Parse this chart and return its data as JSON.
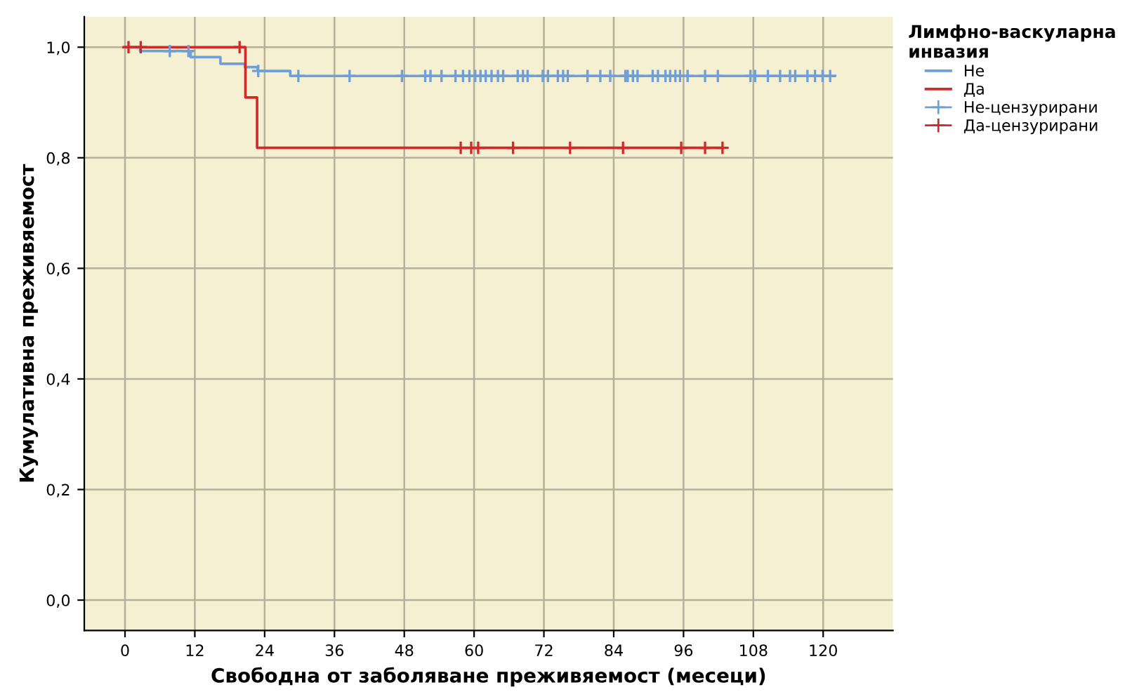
{
  "chart_data": {
    "type": "step",
    "xlabel": "Свободна от заболяване преживяемост (месеци)",
    "ylabel": "Кумулативна преживяемост",
    "legend_title": "Лимфно-васкуларна инвазия",
    "legend": "right",
    "grid": true,
    "xlim": [
      -7,
      132
    ],
    "ylim": [
      -0.055,
      1.055
    ],
    "xticks": [
      0,
      12,
      24,
      36,
      48,
      60,
      72,
      84,
      96,
      108,
      120
    ],
    "yticks": [
      {
        "value": 0,
        "label": "0,0"
      },
      {
        "value": 0.2,
        "label": "0,2"
      },
      {
        "value": 0.4,
        "label": "0,4"
      },
      {
        "value": 0.6,
        "label": "0,6"
      },
      {
        "value": 0.8,
        "label": "0,8"
      },
      {
        "value": 1.0,
        "label": "1,0"
      }
    ],
    "series": [
      {
        "name": "Не",
        "color": "#6f9fd8",
        "x": [
          0,
          2.6,
          11.3,
          16.4,
          20.6,
          22.8,
          28.4,
          122
        ],
        "values": [
          1,
          0.993,
          0.982,
          0.97,
          0.964,
          0.957,
          0.948,
          0.948
        ]
      },
      {
        "name": "Да",
        "color": "#d02a2a",
        "x": [
          0,
          20.7,
          22.7,
          102.7
        ],
        "values": [
          1,
          0.909,
          0.818,
          0.818
        ]
      },
      {
        "name": "Не-цензурирани",
        "type": "scatter",
        "marker": "cross",
        "color": "#6f9fd8",
        "x": [
          7.7,
          10.9,
          22.9,
          29.8,
          38.6,
          47.6,
          51.6,
          52.5,
          54.4,
          56.8,
          58.1,
          59.2,
          60.2,
          61.1,
          62.0,
          63.0,
          64.1,
          65.0,
          67.5,
          68.4,
          69.2,
          71.8,
          72.7,
          74.4,
          75.3,
          76.1,
          79.5,
          81.7,
          83.4,
          86.0,
          86.4,
          87.3,
          88.1,
          90.7,
          91.6,
          92.9,
          93.7,
          94.6,
          95.4,
          96.7,
          99.7,
          101.9,
          107.5,
          108.3,
          110.5,
          112.6,
          114.3,
          115.2,
          117.3,
          118.6,
          119.9,
          121.2
        ],
        "values": [
          0.993,
          0.993,
          0.957,
          0.948,
          0.948,
          0.948,
          0.948,
          0.948,
          0.948,
          0.948,
          0.948,
          0.948,
          0.948,
          0.948,
          0.948,
          0.948,
          0.948,
          0.948,
          0.948,
          0.948,
          0.948,
          0.948,
          0.948,
          0.948,
          0.948,
          0.948,
          0.948,
          0.948,
          0.948,
          0.948,
          0.948,
          0.948,
          0.948,
          0.948,
          0.948,
          0.948,
          0.948,
          0.948,
          0.948,
          0.948,
          0.948,
          0.948,
          0.948,
          0.948,
          0.948,
          0.948,
          0.948,
          0.948,
          0.948,
          0.948,
          0.948,
          0.948
        ]
      },
      {
        "name": "Да-цензурирани",
        "type": "scatter",
        "marker": "cross",
        "color": "#d02a2a",
        "x": [
          0.6,
          2.7,
          19.7,
          57.7,
          59.5,
          60.7,
          66.7,
          76.5,
          85.6,
          95.6,
          99.7,
          102.7
        ],
        "values": [
          1,
          1,
          1,
          0.818,
          0.818,
          0.818,
          0.818,
          0.818,
          0.818,
          0.818,
          0.818,
          0.818
        ]
      }
    ]
  }
}
